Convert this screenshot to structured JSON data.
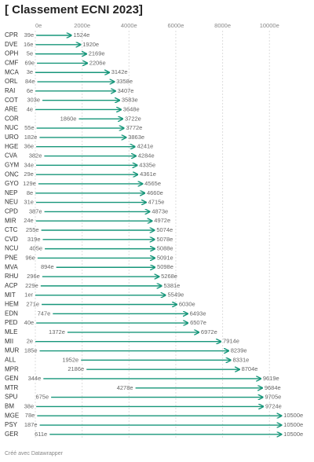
{
  "chart_data": {
    "type": "arrow",
    "title": "[ Classement ECNI 2023]",
    "footer": "Créé avec Datawrapper",
    "categories": [
      "CPR",
      "DVE",
      "OPH",
      "CMF",
      "MCA",
      "ORL",
      "RAI",
      "COT",
      "ARE",
      "COR",
      "NUC",
      "URO",
      "HGE",
      "CVA",
      "GYM",
      "ONC",
      "GYO",
      "NEP",
      "NEU",
      "CPD",
      "MIR",
      "CTC",
      "CVD",
      "NCU",
      "PNE",
      "MVA",
      "RHU",
      "ACP",
      "MIT",
      "HEM",
      "EDN",
      "PED",
      "MLE",
      "MII",
      "MUR",
      "ALL",
      "MPR",
      "GEN",
      "MTR",
      "SPU",
      "BM",
      "MGE",
      "PSY",
      "GER"
    ],
    "series": [
      {
        "color": "#17967a",
        "values": [
          39,
          16,
          5,
          69,
          3,
          84,
          6,
          303,
          4,
          1860,
          55,
          182,
          36,
          382,
          34,
          29,
          129,
          8,
          31,
          387,
          24,
          255,
          319,
          405,
          96,
          894,
          296,
          229,
          1,
          271,
          747,
          40,
          1372,
          2,
          185,
          1952,
          2186,
          344,
          4278,
          675,
          38,
          78,
          187,
          611
        ],
        "value_labels": [
          "39e",
          "16e",
          "5e",
          "69e",
          "3e",
          "84e",
          "6e",
          "303e",
          "4e",
          "1860e",
          "55e",
          "182e",
          "36e",
          "382e",
          "34e",
          "29e",
          "129e",
          "8e",
          "31e",
          "387e",
          "24e",
          "255e",
          "319e",
          "405e",
          "96e",
          "894e",
          "296e",
          "229e",
          "1er",
          "271e",
          "747e",
          "40e",
          "1372e",
          "2e",
          "185e",
          "1952e",
          "2186e",
          "344e",
          "4278e",
          "675e",
          "38e",
          "78e",
          "187e",
          "611e"
        ]
      },
      {
        "color": "#17967a",
        "values": [
          1524,
          1920,
          2169,
          2206,
          3142,
          3358,
          3407,
          3583,
          3648,
          3722,
          3772,
          3863,
          4241,
          4284,
          4335,
          4361,
          4565,
          4660,
          4715,
          4873,
          4972,
          5074,
          5078,
          5088,
          5091,
          5098,
          5268,
          5381,
          5549,
          6030,
          6493,
          6507,
          6972,
          7914,
          8239,
          8331,
          8704,
          9619,
          9684,
          9705,
          9724,
          10500,
          10500,
          10500
        ],
        "value_labels": [
          "1524e",
          "1920e",
          "2169e",
          "2206e",
          "3142e",
          "3358e",
          "3407e",
          "3583e",
          "3648e",
          "3722e",
          "3772e",
          "3863e",
          "4241e",
          "4284e",
          "4335e",
          "4361e",
          "4565e",
          "4660e",
          "4715e",
          "4873e",
          "4972e",
          "5074e",
          "5078e",
          "5088e",
          "5091e",
          "5098e",
          "5268e",
          "5381e",
          "5549e",
          "6030e",
          "6493e",
          "6507e",
          "6972e",
          "7914e",
          "8239e",
          "8331e",
          "8704e",
          "9619e",
          "9684e",
          "9705e",
          "9724e",
          "10500e",
          "10500e",
          "10500e"
        ]
      }
    ],
    "xlim": [
      0,
      11400
    ],
    "xticks": [
      {
        "value": 0,
        "label": "0e"
      },
      {
        "value": 2000,
        "label": "2000e"
      },
      {
        "value": 4000,
        "label": "4000e"
      },
      {
        "value": 6000,
        "label": "6000e"
      },
      {
        "value": 8000,
        "label": "8000e"
      },
      {
        "value": 10000,
        "label": "10000e"
      }
    ],
    "grid": true
  }
}
